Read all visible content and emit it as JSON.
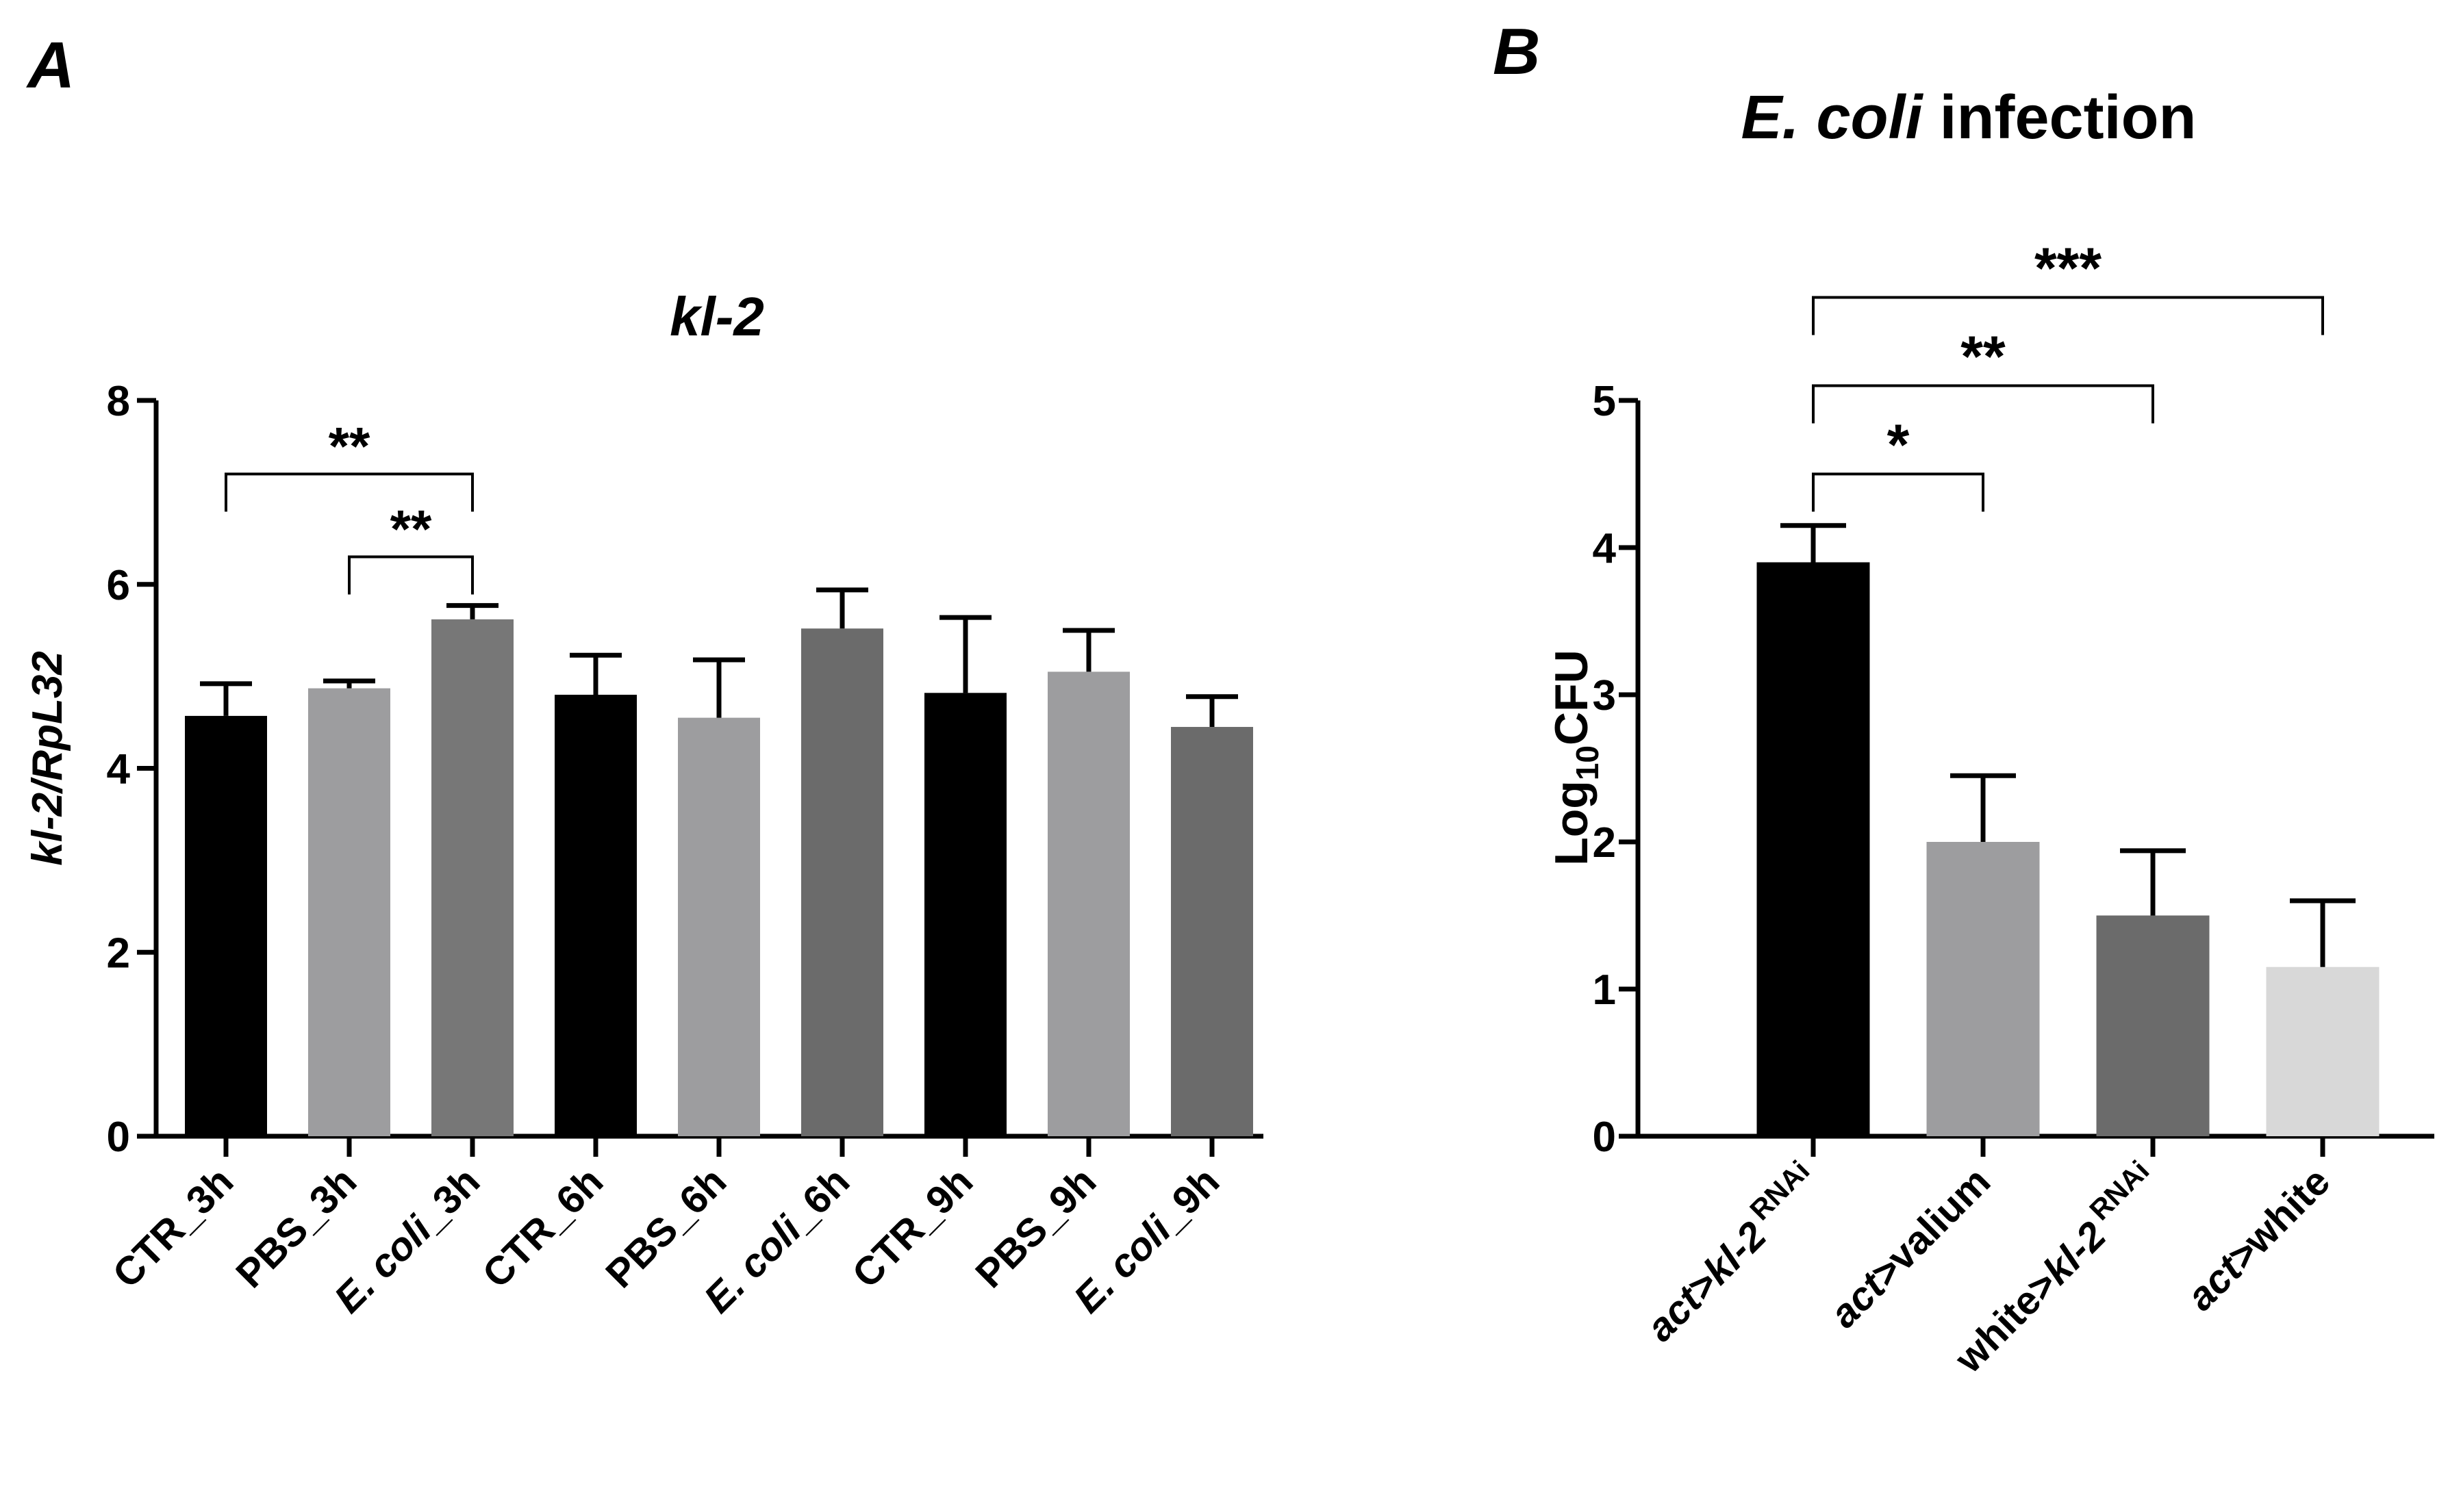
{
  "panels": {
    "a_letter": "A",
    "b_letter": "B"
  },
  "colors": {
    "black": "#000000",
    "mid_gray": "#9d9d9f",
    "dark_gray": "#6b6b6b",
    "dark_gray_alt": "#777777",
    "light_gray": "#d8d8d8"
  },
  "chart_data": [
    {
      "panel": "A",
      "type": "bar",
      "title": "kl-2",
      "ylabel": "kl-2/RpL32",
      "xlabel": "",
      "ylim": [
        0,
        8
      ],
      "yticks": [
        0,
        2,
        4,
        6,
        8
      ],
      "grid": false,
      "categories": [
        "CTR_3h",
        "PBS_3h",
        "E. coli_3h",
        "CTR_6h",
        "PBS_6h",
        "E. coli_6h",
        "CTR_9h",
        "PBS_9h",
        "E. coli_9h"
      ],
      "category_labels": [
        {
          "italic": "",
          "text": "CTR_3h"
        },
        {
          "italic": "",
          "text": "PBS_3h"
        },
        {
          "italic": "E. coli",
          "text": "_3h"
        },
        {
          "italic": "",
          "text": "CTR_6h"
        },
        {
          "italic": "",
          "text": "PBS_6h"
        },
        {
          "italic": "E. coli",
          "text": "_6h"
        },
        {
          "italic": "",
          "text": "CTR_9h"
        },
        {
          "italic": "",
          "text": "PBS_9h"
        },
        {
          "italic": "E. coli",
          "text": "_9h"
        }
      ],
      "values": [
        4.57,
        4.87,
        5.62,
        4.8,
        4.55,
        5.52,
        4.82,
        5.05,
        4.45
      ],
      "errors": [
        0.35,
        0.08,
        0.15,
        0.43,
        0.63,
        0.42,
        0.82,
        0.45,
        0.33
      ],
      "bar_colors": [
        "#000000",
        "#9d9d9f",
        "#777777",
        "#000000",
        "#9d9d9f",
        "#6b6b6b",
        "#000000",
        "#9d9d9f",
        "#6b6b6b"
      ],
      "significance": [
        {
          "from": 0,
          "to": 2,
          "label": "**",
          "y": 7.2
        },
        {
          "from": 1,
          "to": 2,
          "label": "**",
          "y": 6.3
        }
      ]
    },
    {
      "panel": "B",
      "type": "bar",
      "title": "E. coli infection",
      "title_italic": "E. coli",
      "title_rest": " infection",
      "ylabel": "Log10CFU",
      "ylabel_parts": {
        "base": "Log",
        "sub": "10",
        "rest": "CFU"
      },
      "xlabel": "",
      "ylim": [
        0,
        5
      ],
      "yticks": [
        0,
        1,
        2,
        3,
        4,
        5
      ],
      "grid": false,
      "categories": [
        "act>kl-2 RNAi",
        "act>valium",
        "white>kl-2 RNAi",
        "act>white"
      ],
      "category_labels": [
        {
          "italic": "act>kl-2",
          "text": "",
          "sup": "RNAi"
        },
        {
          "italic": "act>",
          "text": "valium",
          "sup": ""
        },
        {
          "italic": "kl-2",
          "pre": "white>",
          "text": "",
          "sup": "RNAi"
        },
        {
          "italic": "act>",
          "text": "white",
          "sup": ""
        }
      ],
      "values": [
        3.9,
        2.0,
        1.5,
        1.15
      ],
      "errors": [
        0.25,
        0.45,
        0.44,
        0.45
      ],
      "bar_colors": [
        "#000000",
        "#9d9d9f",
        "#6b6b6b",
        "#d8d8d8"
      ],
      "significance": [
        {
          "from": 0,
          "to": 1,
          "label": "*",
          "y": 4.5
        },
        {
          "from": 0,
          "to": 2,
          "label": "**",
          "y": 5.1
        },
        {
          "from": 0,
          "to": 3,
          "label": "***",
          "y": 5.7
        }
      ]
    }
  ]
}
